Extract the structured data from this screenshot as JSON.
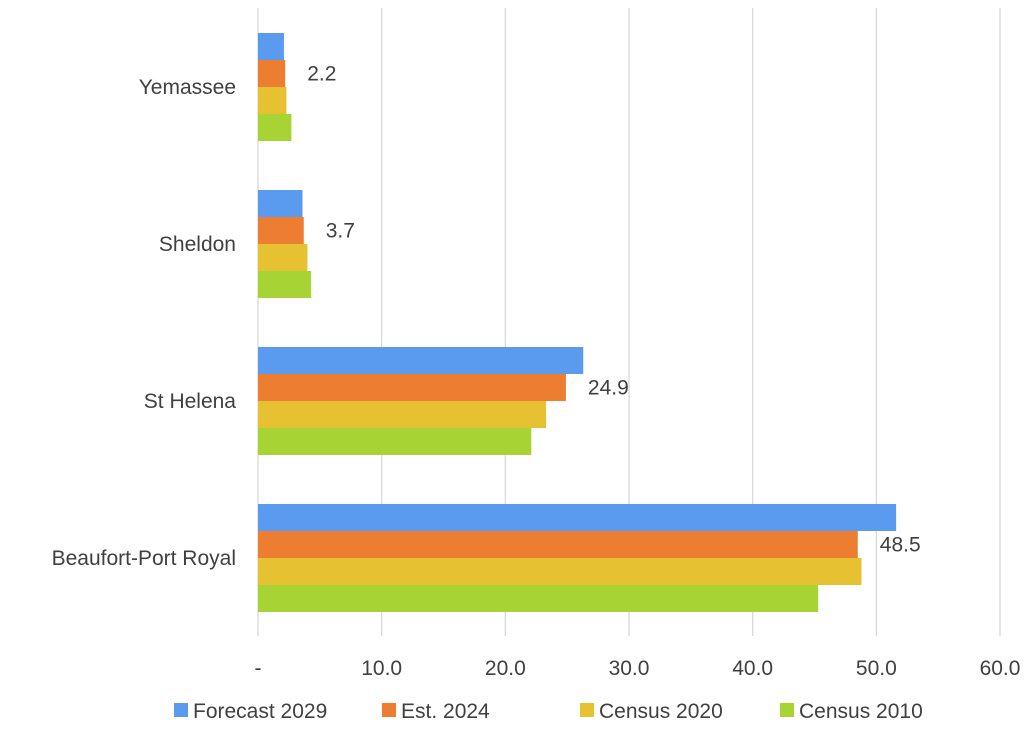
{
  "chart_data": {
    "type": "bar",
    "orientation": "horizontal",
    "categories": [
      "Beaufort-Port Royal",
      "St Helena",
      "Sheldon",
      "Yemassee"
    ],
    "series": [
      {
        "name": "Forecast 2029",
        "color": "#5B9BEF",
        "values": [
          51.6,
          26.3,
          3.6,
          2.1
        ]
      },
      {
        "name": "Est. 2024",
        "color": "#ED7D31",
        "values": [
          48.5,
          24.9,
          3.7,
          2.2
        ]
      },
      {
        "name": "Census 2020",
        "color": "#E6C233",
        "values": [
          48.8,
          23.3,
          4.0,
          2.3
        ]
      },
      {
        "name": "Census 2010",
        "color": "#A7D434",
        "values": [
          45.3,
          22.1,
          4.3,
          2.7
        ]
      }
    ],
    "data_label_series": "Est. 2024",
    "data_labels": [
      "48.5",
      "24.9",
      "3.7",
      "2.2"
    ],
    "xlim": [
      0,
      60
    ],
    "x_ticks": [
      0,
      10,
      20,
      30,
      40,
      50,
      60
    ],
    "x_tick_labels": [
      "-",
      "10.0",
      "20.0",
      "30.0",
      "40.0",
      "50.0",
      "60.0"
    ],
    "grid": "vertical",
    "legend_position": "bottom"
  }
}
